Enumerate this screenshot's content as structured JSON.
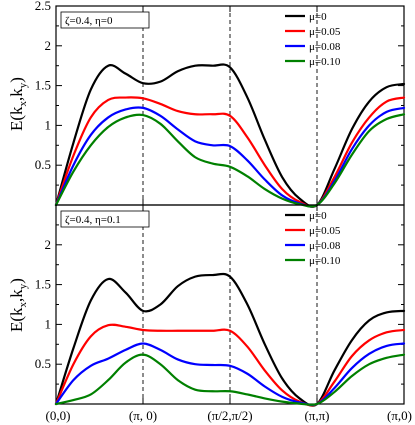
{
  "chart_data": [
    {
      "type": "line",
      "panel": "top",
      "annotation": "ζ=0.4, η=0",
      "ylabel": "E(k_x,k_y)",
      "ylim": [
        0,
        2.5
      ],
      "yticks": [
        0.5,
        1,
        1.5,
        2,
        2.5
      ],
      "ytick_labels": [
        "0.5",
        "1",
        "1.5",
        "2",
        "2.5"
      ],
      "x_path_positions": [
        0,
        1,
        2,
        3,
        4
      ],
      "vertical_dashed_lines_at": [
        1,
        2,
        3
      ],
      "legend_position": "top-right",
      "series": [
        {
          "name": "μ=0",
          "color": "#000000",
          "x": [
            0,
            0.2,
            0.4,
            0.6,
            0.8,
            1.0,
            1.2,
            1.4,
            1.6,
            1.8,
            2.0,
            2.2,
            2.4,
            2.6,
            2.8,
            3.0,
            3.2,
            3.4,
            3.6,
            3.8,
            4.0
          ],
          "y": [
            0.0,
            0.78,
            1.45,
            1.75,
            1.65,
            1.53,
            1.55,
            1.68,
            1.75,
            1.75,
            1.73,
            1.35,
            0.82,
            0.35,
            0.08,
            0.0,
            0.45,
            0.95,
            1.3,
            1.48,
            1.52
          ]
        },
        {
          "name": "μ=0.05",
          "color": "#ff0000",
          "x": [
            0,
            0.2,
            0.4,
            0.6,
            0.8,
            1.0,
            1.2,
            1.4,
            1.6,
            1.8,
            2.0,
            2.2,
            2.4,
            2.6,
            2.8,
            3.0,
            3.2,
            3.4,
            3.6,
            3.8,
            4.0
          ],
          "y": [
            0.0,
            0.62,
            1.1,
            1.32,
            1.35,
            1.34,
            1.27,
            1.18,
            1.14,
            1.14,
            1.12,
            0.85,
            0.5,
            0.2,
            0.04,
            0.0,
            0.35,
            0.78,
            1.1,
            1.3,
            1.35
          ]
        },
        {
          "name": "μ=0.08",
          "color": "#0000ff",
          "x": [
            0,
            0.2,
            0.4,
            0.6,
            0.8,
            1.0,
            1.2,
            1.4,
            1.6,
            1.8,
            2.0,
            2.2,
            2.4,
            2.6,
            2.8,
            3.0,
            3.2,
            3.4,
            3.6,
            3.8,
            4.0
          ],
          "y": [
            0.0,
            0.5,
            0.88,
            1.1,
            1.2,
            1.22,
            1.12,
            0.95,
            0.8,
            0.75,
            0.74,
            0.56,
            0.32,
            0.12,
            0.02,
            0.0,
            0.3,
            0.7,
            1.0,
            1.17,
            1.22
          ]
        },
        {
          "name": "μ=0.10",
          "color": "#008000",
          "x": [
            0,
            0.2,
            0.4,
            0.6,
            0.8,
            1.0,
            1.2,
            1.4,
            1.6,
            1.8,
            2.0,
            2.2,
            2.4,
            2.6,
            2.8,
            3.0,
            3.2,
            3.4,
            3.6,
            3.8,
            4.0
          ],
          "y": [
            0.0,
            0.42,
            0.75,
            0.98,
            1.1,
            1.13,
            1.02,
            0.8,
            0.6,
            0.52,
            0.48,
            0.36,
            0.2,
            0.08,
            0.01,
            0.0,
            0.27,
            0.63,
            0.93,
            1.08,
            1.14
          ]
        }
      ]
    },
    {
      "type": "line",
      "panel": "bottom",
      "annotation": "ζ=0.4, η=0.1",
      "ylabel": "E(k_x,k_y)",
      "ylim": [
        0,
        2.5
      ],
      "yticks": [
        0.5,
        1,
        1.5,
        2
      ],
      "ytick_labels": [
        "0.5",
        "1",
        "1.5",
        "2"
      ],
      "x_path_positions": [
        0,
        1,
        2,
        3,
        4
      ],
      "xtick_labels": [
        "(0,0)",
        "(π, 0)",
        "(π/2,π/2)",
        "(π,π)",
        "(π,0)"
      ],
      "vertical_dashed_lines_at": [
        1,
        2,
        3
      ],
      "legend_position": "top-right",
      "series": [
        {
          "name": "μ=0",
          "color": "#000000",
          "x": [
            0,
            0.2,
            0.4,
            0.6,
            0.8,
            1.0,
            1.2,
            1.4,
            1.6,
            1.8,
            2.0,
            2.2,
            2.4,
            2.6,
            2.8,
            3.0,
            3.2,
            3.4,
            3.6,
            3.8,
            4.0
          ],
          "y": [
            0.0,
            0.7,
            1.3,
            1.57,
            1.4,
            1.17,
            1.25,
            1.48,
            1.6,
            1.62,
            1.6,
            1.25,
            0.75,
            0.32,
            0.07,
            0.0,
            0.42,
            0.8,
            1.05,
            1.15,
            1.17
          ]
        },
        {
          "name": "μ=0.05",
          "color": "#ff0000",
          "x": [
            0,
            0.2,
            0.4,
            0.6,
            0.8,
            1.0,
            1.2,
            1.4,
            1.6,
            1.8,
            2.0,
            2.2,
            2.4,
            2.6,
            2.8,
            3.0,
            3.2,
            3.4,
            3.6,
            3.8,
            4.0
          ],
          "y": [
            0.0,
            0.5,
            0.85,
            0.99,
            0.97,
            0.93,
            0.92,
            0.92,
            0.92,
            0.92,
            0.92,
            0.72,
            0.42,
            0.17,
            0.03,
            0.0,
            0.28,
            0.6,
            0.8,
            0.9,
            0.93
          ]
        },
        {
          "name": "μ=0.08",
          "color": "#0000ff",
          "x": [
            0,
            0.2,
            0.4,
            0.6,
            0.8,
            1.0,
            1.2,
            1.4,
            1.6,
            1.8,
            2.0,
            2.2,
            2.4,
            2.6,
            2.8,
            3.0,
            3.2,
            3.4,
            3.6,
            3.8,
            4.0
          ],
          "y": [
            0.0,
            0.3,
            0.48,
            0.57,
            0.68,
            0.76,
            0.68,
            0.56,
            0.5,
            0.49,
            0.48,
            0.38,
            0.22,
            0.09,
            0.02,
            0.0,
            0.2,
            0.45,
            0.63,
            0.73,
            0.76
          ]
        },
        {
          "name": "μ=0.10",
          "color": "#008000",
          "x": [
            0,
            0.2,
            0.4,
            0.6,
            0.8,
            1.0,
            1.2,
            1.4,
            1.6,
            1.8,
            2.0,
            2.2,
            2.4,
            2.6,
            2.8,
            3.0,
            3.2,
            3.4,
            3.6,
            3.8,
            4.0
          ],
          "y": [
            0.0,
            0.05,
            0.12,
            0.3,
            0.52,
            0.62,
            0.5,
            0.3,
            0.18,
            0.16,
            0.16,
            0.12,
            0.07,
            0.03,
            0.005,
            0.0,
            0.15,
            0.35,
            0.5,
            0.58,
            0.62
          ]
        }
      ]
    }
  ]
}
